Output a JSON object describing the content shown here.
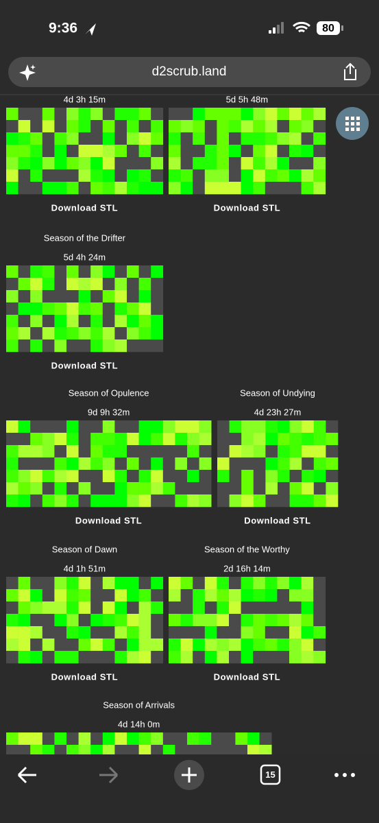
{
  "status": {
    "time": "9:36",
    "battery": "80"
  },
  "url": "d2scrub.land",
  "cards": [
    {
      "time": "4d 3h 15m",
      "button": "Download STL"
    },
    {
      "time": "5d 5h 48m",
      "button": "Download STL"
    },
    {
      "title": "Season of the Drifter",
      "time": "5d 4h 24m",
      "button": "Download STL"
    },
    {
      "title": "Season of Opulence",
      "time": "9d 9h 32m",
      "button": "Download STL"
    },
    {
      "title": "Season of Undying",
      "time": "4d 23h 27m",
      "button": "Download STL"
    },
    {
      "title": "Season of Dawn",
      "time": "4d 1h 51m",
      "button": "Download STL"
    },
    {
      "title": "Season of the Worthy",
      "time": "2d 16h 14m",
      "button": "Download STL"
    },
    {
      "title": "Season of Arrivals",
      "time": "4d 14h 0m"
    }
  ],
  "toolbar": {
    "tabs": "15"
  }
}
